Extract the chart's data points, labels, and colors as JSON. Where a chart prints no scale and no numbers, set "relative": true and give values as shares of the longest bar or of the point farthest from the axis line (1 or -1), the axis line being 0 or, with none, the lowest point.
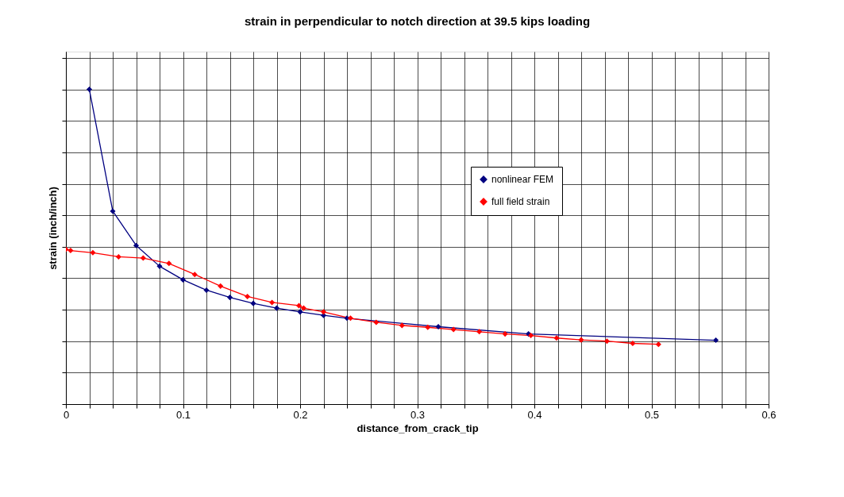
{
  "chart_data": {
    "type": "line",
    "title": "strain in perpendicular to notch direction at 39.5 kips loading",
    "xlabel": "distance_from_crack_tip",
    "ylabel": "strain (inch/inch)",
    "relative": true,
    "xlim": [
      0,
      0.6
    ],
    "xticks": [
      0,
      {
        "value": 0.02,
        "label": null
      },
      {
        "value": 0.04,
        "label": null
      },
      {
        "value": 0.06,
        "label": null
      },
      {
        "value": 0.08,
        "label": null
      },
      0.1,
      {
        "value": 0.12,
        "label": null
      },
      {
        "value": 0.14,
        "label": null
      },
      {
        "value": 0.16,
        "label": null
      },
      {
        "value": 0.18,
        "label": null
      },
      0.2,
      {
        "value": 0.22,
        "label": null
      },
      {
        "value": 0.24,
        "label": null
      },
      {
        "value": 0.26,
        "label": null
      },
      {
        "value": 0.28,
        "label": null
      },
      0.3,
      {
        "value": 0.32,
        "label": null
      },
      {
        "value": 0.34,
        "label": null
      },
      {
        "value": 0.36,
        "label": null
      },
      {
        "value": 0.38,
        "label": null
      },
      0.4,
      {
        "value": 0.42,
        "label": null
      },
      {
        "value": 0.44,
        "label": null
      },
      {
        "value": 0.46,
        "label": null
      },
      {
        "value": 0.48,
        "label": null
      },
      0.5,
      {
        "value": 0.52,
        "label": null
      },
      {
        "value": 0.54,
        "label": null
      },
      {
        "value": 0.56,
        "label": null
      },
      {
        "value": 0.58,
        "label": null
      },
      0.6
    ],
    "grid": true,
    "legend": "right",
    "marker": "diamond",
    "line_style": "solid",
    "series": [
      {
        "name": "nonlinear FEM",
        "color": "#000080",
        "x": [
          0.02,
          0.04,
          0.06,
          0.08,
          0.1,
          0.12,
          0.14,
          0.16,
          0.18,
          0.2,
          0.22,
          0.24,
          0.318,
          0.395,
          0.555
        ],
        "values": [
          1.0,
          0.613,
          0.504,
          0.438,
          0.395,
          0.362,
          0.339,
          0.32,
          0.305,
          0.293,
          0.282,
          0.273,
          0.246,
          0.223,
          0.203
        ]
      },
      {
        "name": "full field strain",
        "color": "#ff0000",
        "x": [
          0.0,
          0.004,
          0.023,
          0.045,
          0.066,
          0.088,
          0.11,
          0.132,
          0.155,
          0.176,
          0.199,
          0.203,
          0.22,
          0.243,
          0.265,
          0.287,
          0.309,
          0.331,
          0.353,
          0.375,
          0.397,
          0.419,
          0.44,
          0.462,
          0.484,
          0.506
        ],
        "values": [
          0.492,
          0.488,
          0.481,
          0.468,
          0.464,
          0.447,
          0.412,
          0.375,
          0.342,
          0.323,
          0.313,
          0.305,
          0.293,
          0.273,
          0.26,
          0.25,
          0.244,
          0.237,
          0.23,
          0.223,
          0.218,
          0.21,
          0.204,
          0.2,
          0.193,
          0.19
        ]
      }
    ]
  }
}
